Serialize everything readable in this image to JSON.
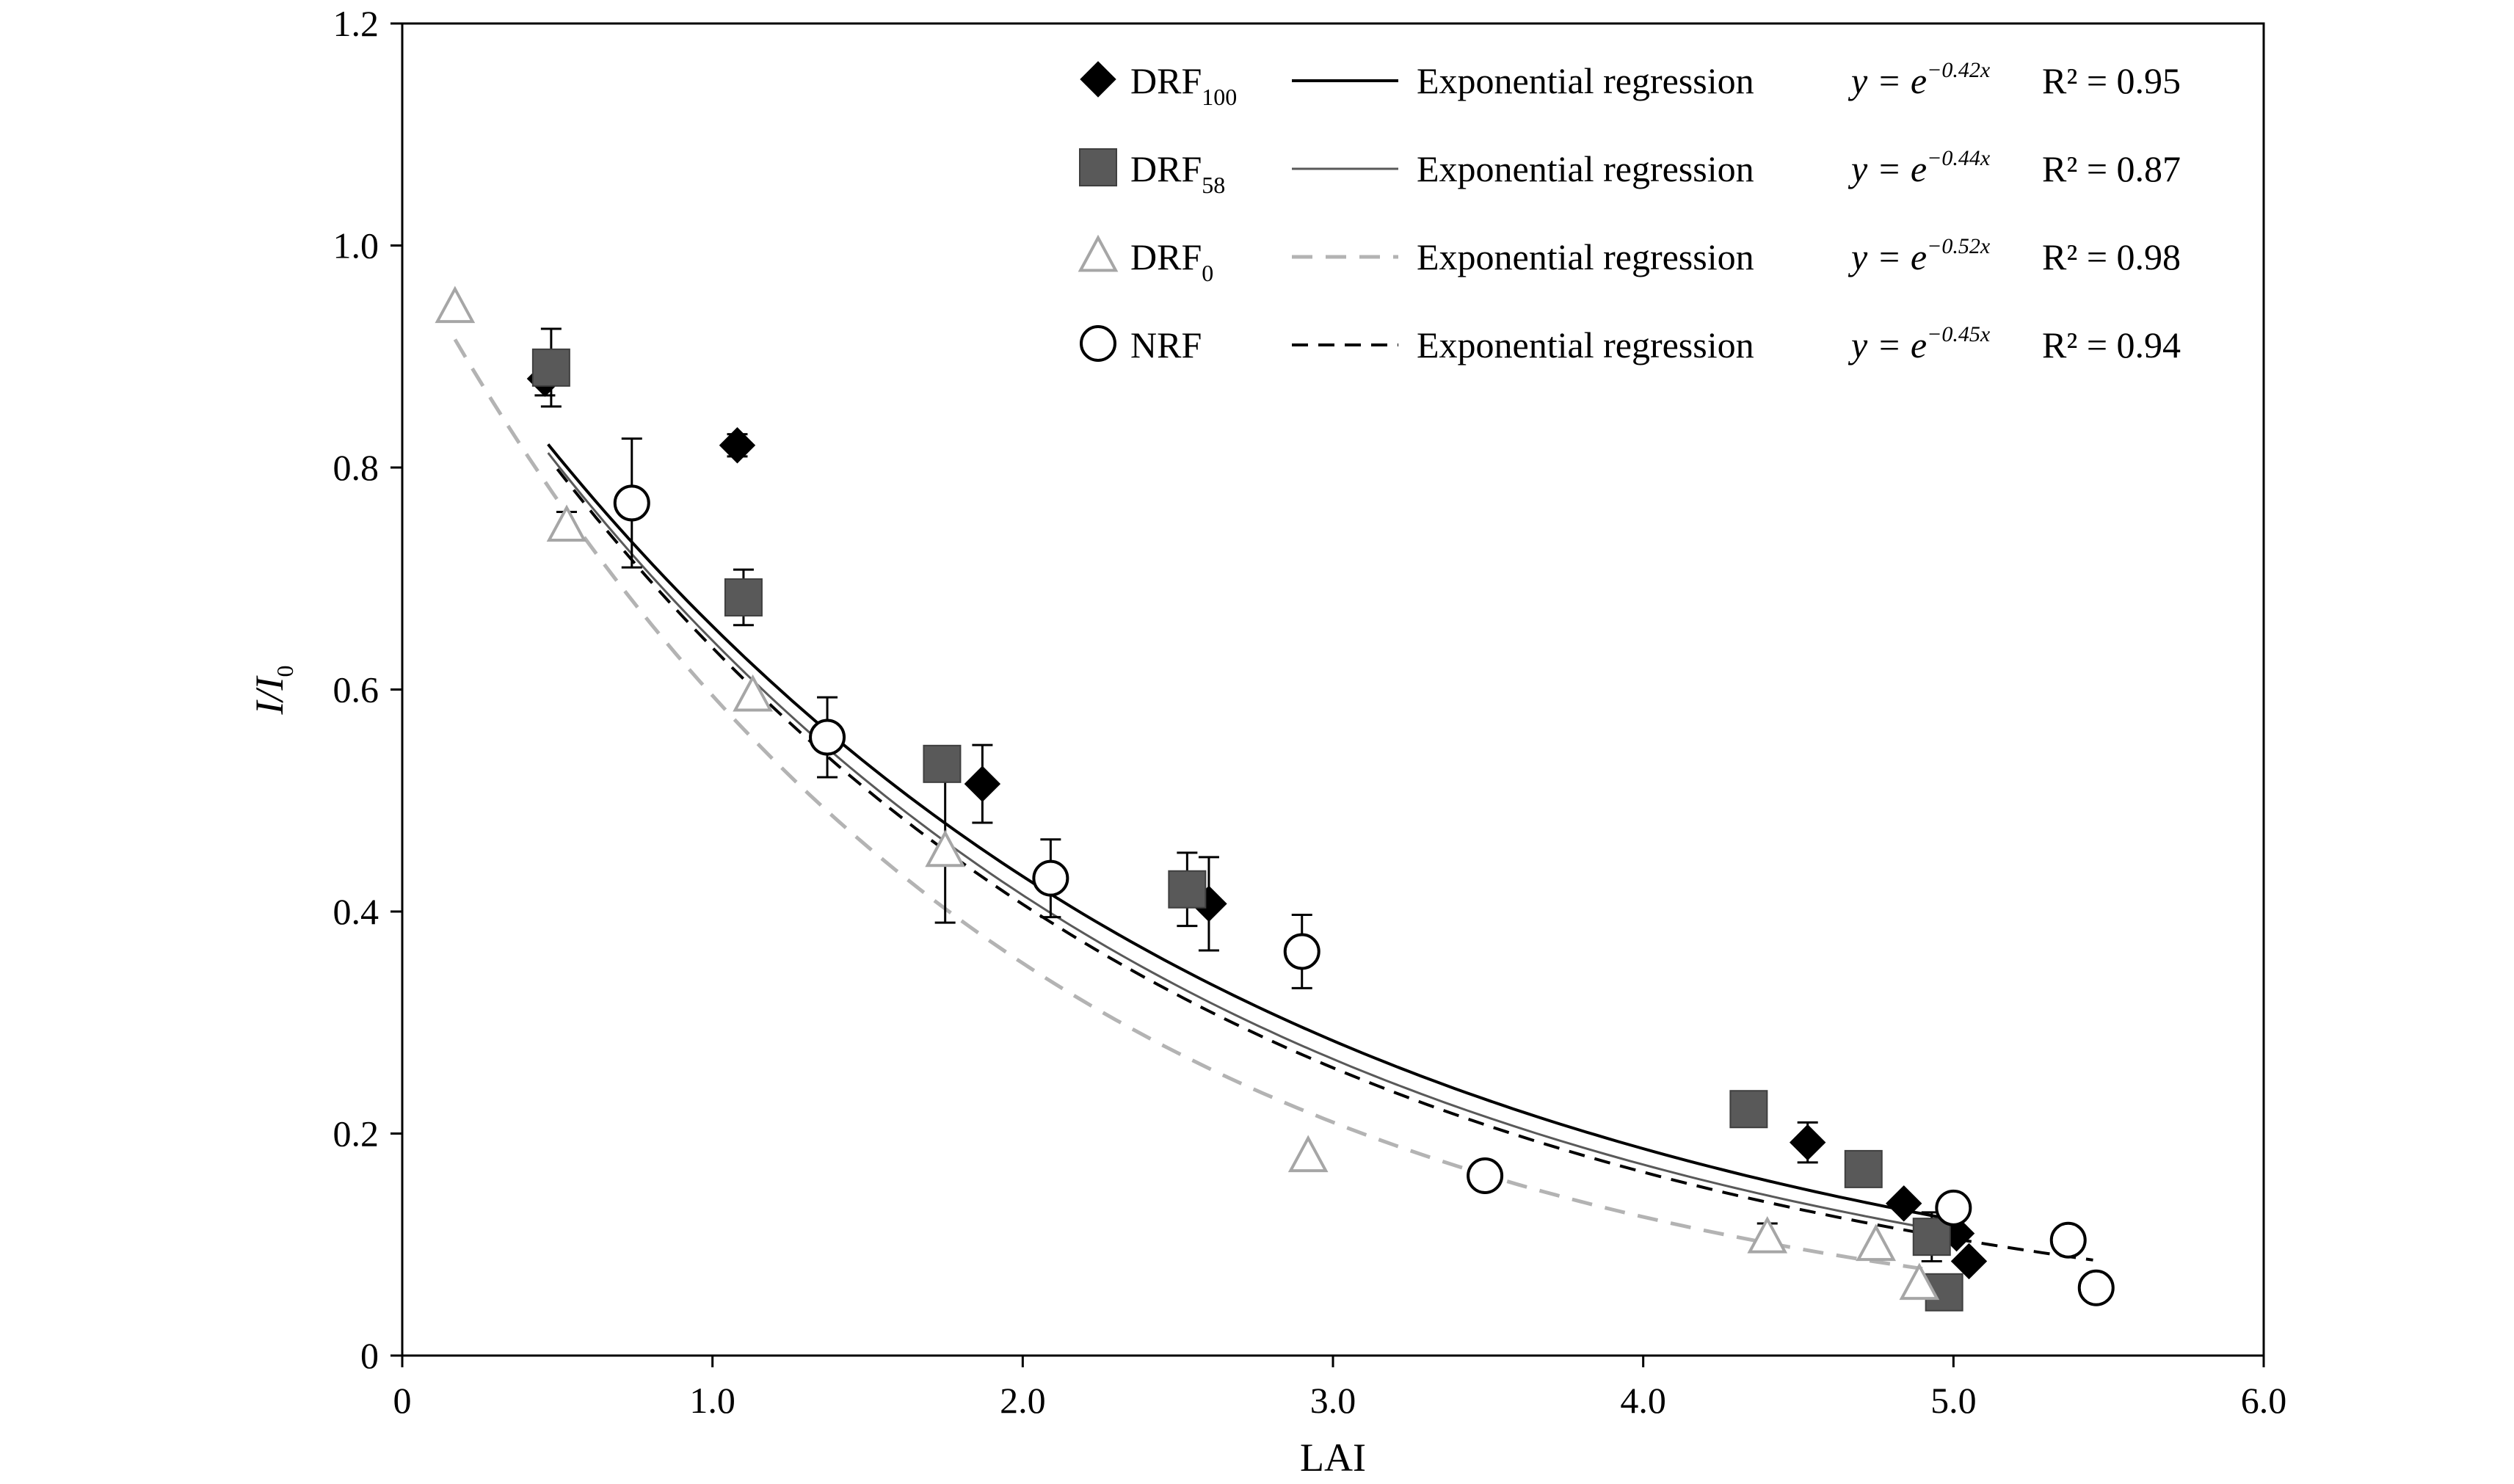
{
  "chart_data": {
    "type": "scatter",
    "title": "",
    "xlabel": "LAI",
    "ylabel": {
      "main": "I/I",
      "sub": "0"
    },
    "xlim": [
      0,
      6.0
    ],
    "ylim": [
      0,
      1.2
    ],
    "xticks": [
      {
        "value": 0,
        "label": "0"
      },
      {
        "value": 1,
        "label": "1.0"
      },
      {
        "value": 2,
        "label": "2.0"
      },
      {
        "value": 3,
        "label": "3.0"
      },
      {
        "value": 4,
        "label": "4.0"
      },
      {
        "value": 5,
        "label": "5.0"
      },
      {
        "value": 6,
        "label": "6.0"
      }
    ],
    "yticks": [
      {
        "value": 0,
        "label": "0"
      },
      {
        "value": 0.2,
        "label": "0.2"
      },
      {
        "value": 0.4,
        "label": "0.4"
      },
      {
        "value": 0.6,
        "label": "0.6"
      },
      {
        "value": 0.8,
        "label": "0.8"
      },
      {
        "value": 1.0,
        "label": "1.0"
      },
      {
        "value": 1.2,
        "label": "1.2"
      }
    ],
    "grid": false,
    "legend_position": "top-right",
    "series": [
      {
        "key": "drf100",
        "name": "DRF",
        "name_sub": "100",
        "marker": "diamond",
        "marker_color": "#000000",
        "regression_label": "Exponential regression",
        "equation": {
          "lhs": "y = e",
          "exp": "−0.42x"
        },
        "r2": "R² = 0.95",
        "coef": -0.42,
        "line": {
          "color": "#000000",
          "dash": "solid",
          "x_start": 0.47,
          "x_end": 4.97
        },
        "points": [
          {
            "x": 0.46,
            "y": 0.88,
            "err": 0.015
          },
          {
            "x": 1.08,
            "y": 0.82,
            "err": 0.01
          },
          {
            "x": 1.87,
            "y": 0.515,
            "err": 0.035
          },
          {
            "x": 2.6,
            "y": 0.407,
            "err": 0.042
          },
          {
            "x": 4.53,
            "y": 0.192,
            "err": 0.018
          },
          {
            "x": 4.84,
            "y": 0.137,
            "err": 0.0
          },
          {
            "x": 5.01,
            "y": 0.11,
            "err": 0.0
          },
          {
            "x": 5.05,
            "y": 0.085,
            "err": 0.0
          }
        ]
      },
      {
        "key": "drf58",
        "name": "DRF",
        "name_sub": "58",
        "marker": "square",
        "marker_color": "#595959",
        "regression_label": "Exponential regression",
        "equation": {
          "lhs": "y = e",
          "exp": "−0.44x"
        },
        "r2": "R² = 0.87",
        "coef": -0.44,
        "line": {
          "color": "#595959",
          "dash": "solid",
          "x_start": 0.47,
          "x_end": 4.97
        },
        "points": [
          {
            "x": 0.48,
            "y": 0.89,
            "err": 0.035
          },
          {
            "x": 1.1,
            "y": 0.683,
            "err": 0.025
          },
          {
            "x": 1.74,
            "y": 0.533,
            "err": 0.0
          },
          {
            "x": 2.53,
            "y": 0.42,
            "err": 0.033
          },
          {
            "x": 4.34,
            "y": 0.222,
            "err": 0.0
          },
          {
            "x": 4.71,
            "y": 0.168,
            "err": 0.0
          },
          {
            "x": 4.93,
            "y": 0.107,
            "err": 0.022
          },
          {
            "x": 4.97,
            "y": 0.057,
            "err": 0.0
          }
        ]
      },
      {
        "key": "drf0",
        "name": "DRF",
        "name_sub": "0",
        "marker": "triangle",
        "marker_color": "#a6a6a6",
        "regression_label": "Exponential regression",
        "equation": {
          "lhs": "y = e",
          "exp": "−0.52x"
        },
        "r2": "R² = 0.98",
        "coef": -0.52,
        "line": {
          "color": "#b3b3b3",
          "dash": "long",
          "x_start": 0.17,
          "x_end": 4.9
        },
        "points": [
          {
            "x": 0.17,
            "y": 0.945,
            "err": 0.0
          },
          {
            "x": 0.53,
            "y": 0.748,
            "err": 0.012
          },
          {
            "x": 1.13,
            "y": 0.595,
            "err": 0.0
          },
          {
            "x": 1.75,
            "y": 0.455,
            "err": 0.065
          },
          {
            "x": 2.92,
            "y": 0.18,
            "err": 0.0
          },
          {
            "x": 4.4,
            "y": 0.107,
            "err": 0.012
          },
          {
            "x": 4.75,
            "y": 0.1,
            "err": 0.0
          },
          {
            "x": 4.89,
            "y": 0.065,
            "err": 0.0
          }
        ]
      },
      {
        "key": "nrf",
        "name": "NRF",
        "name_sub": "",
        "marker": "circle",
        "marker_color": "#000000",
        "regression_label": "Exponential regression",
        "equation": {
          "lhs": "y = e",
          "exp": "−0.45x"
        },
        "r2": "R² = 0.94",
        "coef": -0.45,
        "line": {
          "color": "#000000",
          "dash": "medium",
          "x_start": 0.5,
          "x_end": 5.45
        },
        "points": [
          {
            "x": 0.74,
            "y": 0.768,
            "err": 0.058
          },
          {
            "x": 1.37,
            "y": 0.557,
            "err": 0.036
          },
          {
            "x": 2.09,
            "y": 0.43,
            "err": 0.035
          },
          {
            "x": 2.9,
            "y": 0.364,
            "err": 0.033
          },
          {
            "x": 3.49,
            "y": 0.162,
            "err": 0.0
          },
          {
            "x": 5.0,
            "y": 0.133,
            "err": 0.0
          },
          {
            "x": 5.37,
            "y": 0.104,
            "err": 0.0
          },
          {
            "x": 5.46,
            "y": 0.061,
            "err": 0.0
          }
        ]
      }
    ]
  }
}
